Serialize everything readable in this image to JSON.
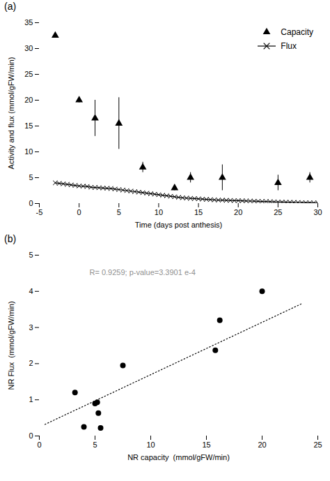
{
  "chart_data": [
    {
      "type": "line",
      "title": "(a)",
      "x_label": "Time (days post anthesis)",
      "y_label": "Activity and flux (mmol/gFW/min)",
      "xlim": [
        -5,
        30
      ],
      "xticks": [
        -5,
        0,
        5,
        10,
        15,
        20,
        25,
        30
      ],
      "ylim": [
        0,
        35
      ],
      "yticks": [
        0,
        5,
        10,
        15,
        20,
        25,
        30,
        35
      ],
      "grid": false,
      "legend": "upper right",
      "series": [
        {
          "name": "Capacity",
          "type": "scatter",
          "marker": "triangle",
          "color": "black",
          "x": [
            -3,
            0,
            2,
            5,
            8,
            12,
            14,
            18,
            25,
            29
          ],
          "values": [
            32.5,
            20.0,
            16.5,
            15.5,
            7.0,
            3.0,
            5.0,
            5.0,
            4.0,
            5.0
          ],
          "errors": [
            0.0,
            0.5,
            3.5,
            5.0,
            1.0,
            0.5,
            1.0,
            2.5,
            1.5,
            1.0
          ]
        },
        {
          "name": "Flux",
          "type": "line",
          "marker": "x",
          "line_style": "solid",
          "color": "black",
          "x": [
            -3,
            -2.5,
            -2,
            -1.5,
            -1,
            -0.5,
            0,
            0.5,
            1,
            1.5,
            2,
            2.5,
            3,
            3.5,
            4,
            4.5,
            5,
            5.5,
            6,
            6.5,
            7,
            7.5,
            8,
            8.5,
            9,
            9.5,
            10,
            10.5,
            11,
            11.5,
            12,
            12.5,
            13,
            13.5,
            14,
            14.5,
            15,
            15.5,
            16,
            16.5,
            17,
            17.5,
            18,
            18.5,
            19,
            19.5,
            20,
            20.5,
            21,
            21.5,
            22,
            22.5,
            23,
            23.5,
            24,
            24.5,
            25,
            25.5,
            26,
            26.5,
            27,
            27.5,
            28,
            28.5,
            29,
            29.5,
            30
          ],
          "values": [
            4.0,
            3.9,
            3.8,
            3.7,
            3.6,
            3.5,
            3.4,
            3.35,
            3.3,
            3.15,
            3.1,
            3.05,
            3.0,
            2.95,
            2.9,
            2.8,
            2.7,
            2.6,
            2.5,
            2.4,
            2.3,
            2.2,
            2.1,
            2.0,
            1.9,
            1.8,
            1.7,
            1.6,
            1.5,
            1.4,
            1.3,
            1.2,
            1.1,
            1.05,
            1.0,
            0.95,
            0.9,
            0.85,
            0.8,
            0.75,
            0.7,
            0.67,
            0.65,
            0.62,
            0.6,
            0.57,
            0.55,
            0.52,
            0.5,
            0.47,
            0.45,
            0.43,
            0.4,
            0.38,
            0.35,
            0.33,
            0.3,
            0.28,
            0.26,
            0.24,
            0.22,
            0.2,
            0.18,
            0.16,
            0.15,
            0.13,
            0.12
          ]
        }
      ]
    },
    {
      "type": "scatter",
      "title": "(b)",
      "x_label": "NR capacity  (mmol/gFW/min)",
      "y_label": "NR Flux  (mmol/gFW/min)",
      "xlim": [
        0,
        25
      ],
      "xticks": [
        0,
        5,
        10,
        15,
        20,
        25
      ],
      "ylim": [
        0,
        5
      ],
      "yticks": [
        0,
        1,
        2,
        3,
        4,
        5
      ],
      "grid": false,
      "series": [
        {
          "type": "scatter",
          "marker": "circle",
          "color": "black",
          "x": [
            3.2,
            4.0,
            5.0,
            5.2,
            5.3,
            5.5,
            7.5,
            15.8,
            16.2,
            20.0
          ],
          "values": [
            1.2,
            0.25,
            0.9,
            0.93,
            0.63,
            0.22,
            1.95,
            2.37,
            3.2,
            4.0
          ]
        },
        {
          "type": "line",
          "line_style": "dotted",
          "color": "black",
          "x": [
            0.5,
            23.5
          ],
          "values": [
            0.32,
            3.65
          ]
        }
      ],
      "annotations": [
        {
          "text": "R= 0.9259; p-value=3.3901 e-4",
          "x": 4.5,
          "y": 4.6,
          "color": "#909090"
        }
      ]
    }
  ]
}
